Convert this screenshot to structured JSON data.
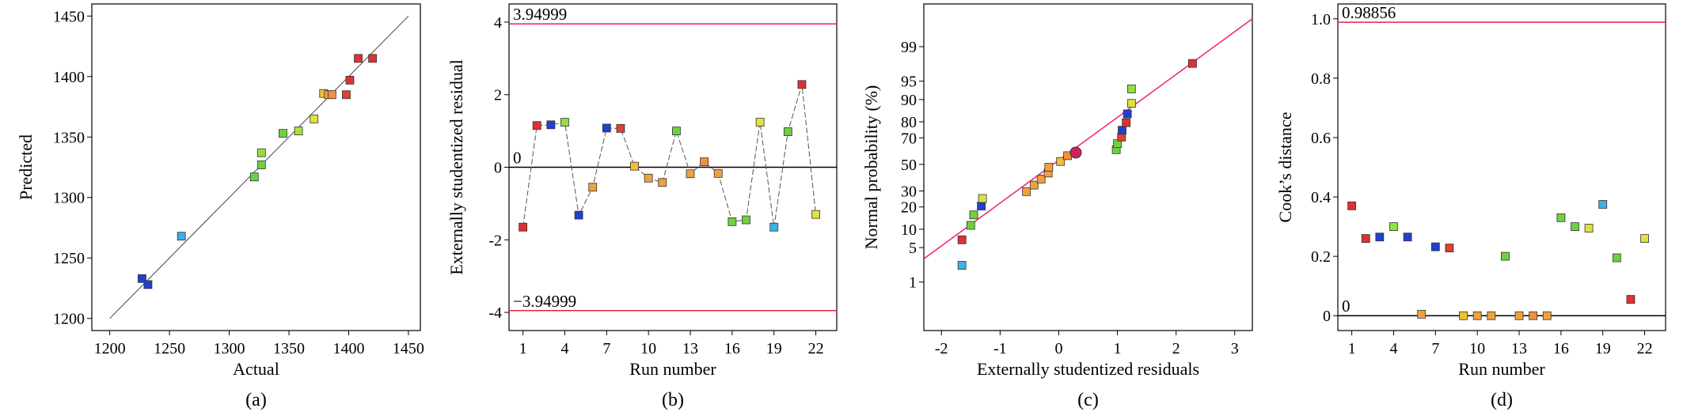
{
  "colors": {
    "ref_line": "#e8204a",
    "fit_line": "#f0207a",
    "connector": "#555555",
    "frame": "#000000",
    "mean_point": "#d02060"
  },
  "chart_data": [
    {
      "type": "scatter",
      "panel": "(a)",
      "xlabel": "Actual",
      "ylabel": "Predicted",
      "xlim": [
        1185,
        1460
      ],
      "ylim": [
        1190,
        1460
      ],
      "xticks": [
        1200,
        1250,
        1300,
        1350,
        1400,
        1450
      ],
      "yticks": [
        1200,
        1250,
        1300,
        1350,
        1400,
        1450
      ],
      "reference_line": [
        [
          1200,
          1200
        ],
        [
          1450,
          1450
        ]
      ],
      "grid": false,
      "points": [
        {
          "x": 1227,
          "y": 1233,
          "color": "#2040d0"
        },
        {
          "x": 1232,
          "y": 1228,
          "color": "#2040d0"
        },
        {
          "x": 1260,
          "y": 1268,
          "color": "#40b0e0"
        },
        {
          "x": 1321,
          "y": 1317,
          "color": "#70d040"
        },
        {
          "x": 1327,
          "y": 1327,
          "color": "#70d040"
        },
        {
          "x": 1327,
          "y": 1337,
          "color": "#90e040"
        },
        {
          "x": 1345,
          "y": 1353,
          "color": "#70d040"
        },
        {
          "x": 1358,
          "y": 1355,
          "color": "#a8e040"
        },
        {
          "x": 1371,
          "y": 1365,
          "color": "#e0e040"
        },
        {
          "x": 1379,
          "y": 1386,
          "color": "#f0c030"
        },
        {
          "x": 1383,
          "y": 1385,
          "color": "#f0a040"
        },
        {
          "x": 1386,
          "y": 1385,
          "color": "#f09040"
        },
        {
          "x": 1398,
          "y": 1385,
          "color": "#e04030"
        },
        {
          "x": 1401,
          "y": 1397,
          "color": "#e03030"
        },
        {
          "x": 1408,
          "y": 1415,
          "color": "#e03030"
        },
        {
          "x": 1420,
          "y": 1415,
          "color": "#e03030"
        }
      ]
    },
    {
      "type": "line",
      "panel": "(b)",
      "xlabel": "Run number",
      "ylabel": "Externally studentized residual",
      "xlim": [
        0,
        23.5
      ],
      "ylim": [
        -4.5,
        4.5
      ],
      "xticks": [
        1,
        4,
        7,
        10,
        13,
        16,
        19,
        22
      ],
      "yticks": [
        -4,
        -2,
        0,
        2,
        4
      ],
      "ref_lines": [
        {
          "y": 3.94999,
          "label": "3.94999"
        },
        {
          "y": 0,
          "label": "0"
        },
        {
          "y": -3.94999,
          "label": "−3.94999"
        }
      ],
      "x": [
        1,
        2,
        3,
        4,
        5,
        6,
        7,
        8,
        9,
        10,
        11,
        12,
        13,
        14,
        15,
        16,
        17,
        18,
        19,
        20,
        21,
        22
      ],
      "values": [
        -1.65,
        1.15,
        1.17,
        1.24,
        -1.32,
        -0.55,
        1.08,
        1.07,
        0.03,
        -0.3,
        -0.42,
        1.0,
        -0.18,
        0.15,
        -0.17,
        -1.5,
        -1.45,
        1.24,
        -1.65,
        0.98,
        2.28,
        -1.3
      ],
      "colors": [
        "#e03030",
        "#e03030",
        "#2040d0",
        "#90e040",
        "#2040d0",
        "#f0a040",
        "#2040d0",
        "#e04030",
        "#f0c030",
        "#f0a040",
        "#f0a040",
        "#70d040",
        "#f0a040",
        "#f09040",
        "#f0a040",
        "#70d040",
        "#70d040",
        "#e0e040",
        "#40b0e0",
        "#70d040",
        "#e03030",
        "#e0e040"
      ]
    },
    {
      "type": "scatter",
      "panel": "(c)",
      "xlabel": "Externally studentized residuals",
      "ylabel": "Normal probability (%)",
      "xlim": [
        -2.3,
        3.3
      ],
      "xticks": [
        -2,
        -1,
        0,
        1,
        2,
        3
      ],
      "yscale": "normal-probability",
      "yticks": [
        1,
        5,
        10,
        20,
        30,
        50,
        70,
        80,
        90,
        95,
        99
      ],
      "fit_line": [
        [
          -2.3,
          3.1
        ],
        [
          3.3,
          99.8
        ]
      ],
      "mean_point": {
        "x": 0.29,
        "y": 59.2
      },
      "points": [
        {
          "x": -1.65,
          "y": 2.3,
          "color": "#40b0e0"
        },
        {
          "x": -1.65,
          "y": 6.8,
          "color": "#e03030"
        },
        {
          "x": -1.5,
          "y": 11.4,
          "color": "#70d040"
        },
        {
          "x": -1.45,
          "y": 15.9,
          "color": "#70d040"
        },
        {
          "x": -1.32,
          "y": 20.5,
          "color": "#2040d0"
        },
        {
          "x": -1.3,
          "y": 25.0,
          "color": "#e0e040"
        },
        {
          "x": -0.55,
          "y": 29.5,
          "color": "#f0a040"
        },
        {
          "x": -0.42,
          "y": 34.1,
          "color": "#f0a040"
        },
        {
          "x": -0.3,
          "y": 38.6,
          "color": "#f0a040"
        },
        {
          "x": -0.18,
          "y": 43.2,
          "color": "#f0a040"
        },
        {
          "x": -0.17,
          "y": 47.7,
          "color": "#f0a040"
        },
        {
          "x": 0.03,
          "y": 52.3,
          "color": "#f0c030"
        },
        {
          "x": 0.15,
          "y": 56.8,
          "color": "#f09040"
        },
        {
          "x": 0.98,
          "y": 61.4,
          "color": "#70d040"
        },
        {
          "x": 1.0,
          "y": 65.9,
          "color": "#70d040"
        },
        {
          "x": 1.07,
          "y": 70.5,
          "color": "#e04030"
        },
        {
          "x": 1.08,
          "y": 75.0,
          "color": "#2040d0"
        },
        {
          "x": 1.15,
          "y": 79.5,
          "color": "#e03030"
        },
        {
          "x": 1.17,
          "y": 84.1,
          "color": "#2040d0"
        },
        {
          "x": 1.24,
          "y": 88.6,
          "color": "#e0e040"
        },
        {
          "x": 1.24,
          "y": 93.2,
          "color": "#90e040"
        },
        {
          "x": 2.28,
          "y": 97.7,
          "color": "#e03030"
        }
      ]
    },
    {
      "type": "scatter",
      "panel": "(d)",
      "xlabel": "Run number",
      "ylabel": "Cook’s distance",
      "xlim": [
        0,
        23.5
      ],
      "ylim": [
        -0.05,
        1.05
      ],
      "xticks": [
        1,
        4,
        7,
        10,
        13,
        16,
        19,
        22
      ],
      "yticks": [
        0,
        0.2,
        0.4,
        0.6,
        0.8,
        1.0
      ],
      "ytick_labels": [
        "0",
        "0.2",
        "0.4",
        "0.6",
        "0.8",
        "1.0"
      ],
      "ref_lines": [
        {
          "y": 0.98856,
          "label": "0.98856"
        },
        {
          "y": 0,
          "label": "0"
        }
      ],
      "x": [
        1,
        2,
        3,
        4,
        5,
        6,
        7,
        8,
        9,
        10,
        11,
        12,
        13,
        14,
        15,
        16,
        17,
        18,
        19,
        20,
        21,
        22
      ],
      "values": [
        0.37,
        0.26,
        0.265,
        0.3,
        0.265,
        0.005,
        0.232,
        0.228,
        0.0,
        0.0,
        0.0,
        0.2,
        0.0,
        0.0,
        0.0,
        0.33,
        0.3,
        0.295,
        0.375,
        0.195,
        0.055,
        0.26
      ],
      "colors": [
        "#e03030",
        "#e03030",
        "#2040d0",
        "#90e040",
        "#2040d0",
        "#f0a040",
        "#2040d0",
        "#e04030",
        "#f0c030",
        "#f0a040",
        "#f0a040",
        "#70d040",
        "#f0a040",
        "#f09040",
        "#f0a040",
        "#70d040",
        "#70d040",
        "#e0e040",
        "#40b0e0",
        "#70d040",
        "#e03030",
        "#e0e040"
      ]
    }
  ]
}
